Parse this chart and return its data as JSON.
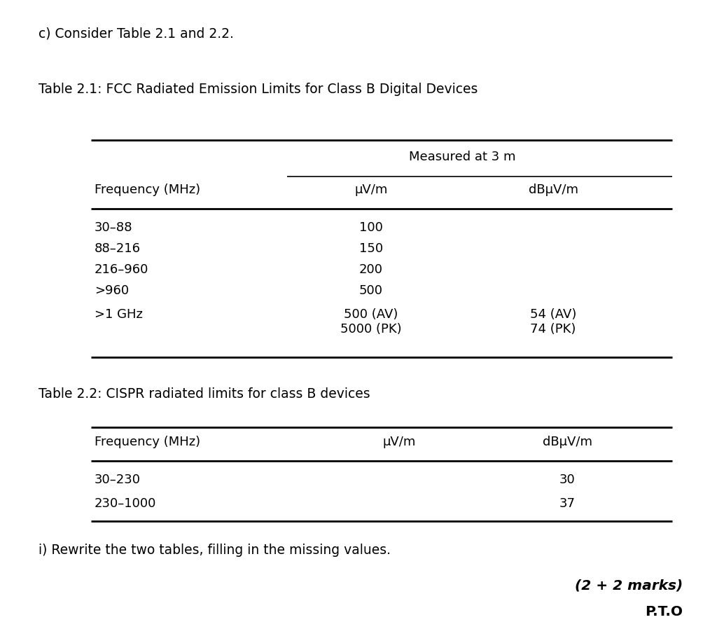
{
  "bg_color": "#ffffff",
  "text_color": "#000000",
  "intro_text": "c) Consider Table 2.1 and 2.2.",
  "table1_title": "Table 2.1: FCC Radiated Emission Limits for Class B Digital Devices",
  "table1_span_header": "Measured at 3 m",
  "table1_col1_header": "Frequency (MHz)",
  "table1_col2_header": "μV/m",
  "table1_col3_header": "dBμV/m",
  "table1_rows": [
    [
      "30–88",
      "100",
      ""
    ],
    [
      "88–216",
      "150",
      ""
    ],
    [
      "216–960",
      "200",
      ""
    ],
    [
      ">960",
      "500",
      ""
    ],
    [
      ">1 GHz",
      "500 (AV)\n5000 (PK)",
      "54 (AV)\n74 (PK)"
    ]
  ],
  "table2_title": "Table 2.2: CISPR radiated limits for class B devices",
  "table2_col1_header": "Frequency (MHz)",
  "table2_col2_header": "μV/m",
  "table2_col3_header": "dBμV/m",
  "table2_rows": [
    [
      "30–230",
      "",
      "30"
    ],
    [
      "230–1000",
      "",
      "37"
    ]
  ],
  "footer_text": "i) Rewrite the two tables, filling in the missing values.",
  "marks_text": "(2 + 2 marks)",
  "pto_text": "P.T.O",
  "font_size_body": 13,
  "font_size_title": 13.5
}
